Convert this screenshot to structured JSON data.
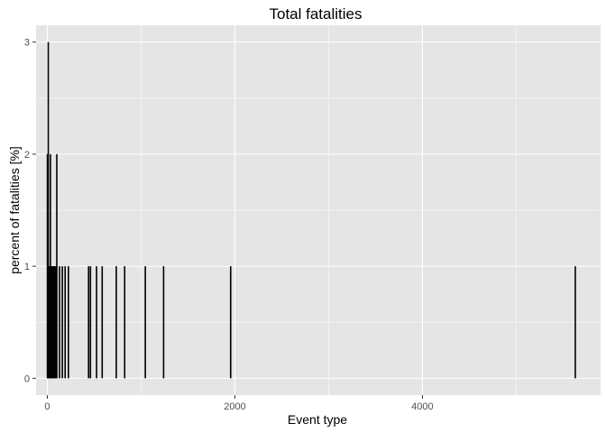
{
  "chart_data": {
    "type": "bar",
    "title": "Total fatalities",
    "xlabel": "Event type",
    "ylabel": "percent of fatalities [%]",
    "xlim": [
      -120,
      5900
    ],
    "ylim": [
      -0.15,
      3.15
    ],
    "x_ticks": [
      0,
      2000,
      4000
    ],
    "y_ticks": [
      0,
      1,
      2,
      3
    ],
    "grid": true,
    "legend": "none",
    "bar_color": "#000000",
    "panel_color": "#e5e5e5",
    "grid_color": "#ffffff",
    "points": [
      {
        "x": 1,
        "y": 2
      },
      {
        "x": 4,
        "y": 1
      },
      {
        "x": 8,
        "y": 1
      },
      {
        "x": 10,
        "y": 3
      },
      {
        "x": 14,
        "y": 1
      },
      {
        "x": 20,
        "y": 1
      },
      {
        "x": 27,
        "y": 1
      },
      {
        "x": 33,
        "y": 2
      },
      {
        "x": 40,
        "y": 1
      },
      {
        "x": 48,
        "y": 1
      },
      {
        "x": 55,
        "y": 1
      },
      {
        "x": 63,
        "y": 1
      },
      {
        "x": 70,
        "y": 1
      },
      {
        "x": 80,
        "y": 1
      },
      {
        "x": 90,
        "y": 1
      },
      {
        "x": 101,
        "y": 2
      },
      {
        "x": 130,
        "y": 1
      },
      {
        "x": 160,
        "y": 1
      },
      {
        "x": 190,
        "y": 1
      },
      {
        "x": 225,
        "y": 1
      },
      {
        "x": 440,
        "y": 1
      },
      {
        "x": 460,
        "y": 1
      },
      {
        "x": 525,
        "y": 1
      },
      {
        "x": 585,
        "y": 1
      },
      {
        "x": 735,
        "y": 1
      },
      {
        "x": 825,
        "y": 1
      },
      {
        "x": 1045,
        "y": 1
      },
      {
        "x": 1240,
        "y": 1
      },
      {
        "x": 1955,
        "y": 1
      },
      {
        "x": 5630,
        "y": 1
      }
    ]
  }
}
